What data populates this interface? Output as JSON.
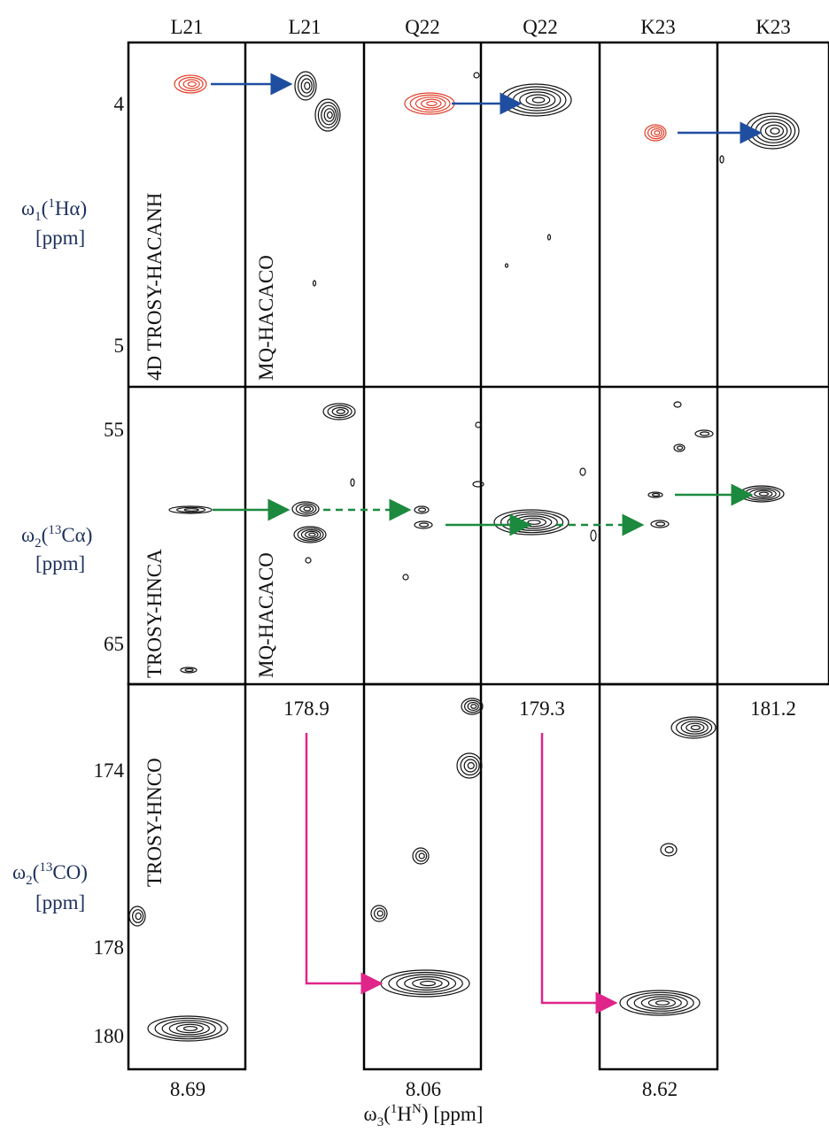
{
  "columns": [
    "L21",
    "L21",
    "Q22",
    "Q22",
    "K23",
    "K23"
  ],
  "rows": [
    {
      "experiments": [
        "4D TROSY-HACANH",
        "MQ-HACACO"
      ],
      "y_ticks": [
        4,
        5
      ],
      "y_axis": {
        "parts": [
          "ω",
          "1",
          "(",
          "1",
          "Hα",
          ")"
        ],
        "unit": "[ppm]"
      }
    },
    {
      "experiments": [
        "TROSY-HNCA",
        "MQ-HACACO"
      ],
      "y_ticks": [
        55,
        65
      ],
      "y_axis": {
        "parts": [
          "ω",
          "2",
          "(",
          "13",
          "Cα",
          ")"
        ],
        "unit": "[ppm]"
      }
    },
    {
      "experiments": [
        "TROSY-HNCO"
      ],
      "y_ticks": [
        174,
        178,
        180
      ],
      "y_axis": {
        "parts": [
          "ω",
          "2",
          "(",
          "13",
          "CO",
          ")"
        ],
        "unit": "[ppm]"
      }
    }
  ],
  "carbonyl_shifts": [
    178.9,
    179.3,
    181.2
  ],
  "x_ticks": [
    8.69,
    8.06,
    8.62
  ],
  "x_axis": {
    "parts": [
      "ω",
      "3",
      "(",
      "1",
      "H",
      "N",
      ") [ppm]"
    ]
  }
}
